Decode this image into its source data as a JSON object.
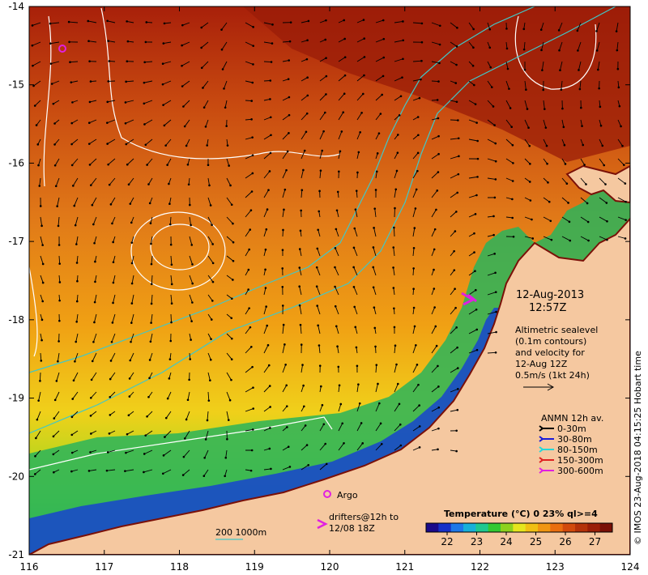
{
  "date_title": "12-Aug-2013",
  "time_title": "12:57Z",
  "altimetry": {
    "line1": "Altimetric sealevel",
    "line2": "(0.1m contours)",
    "line3": "and velocity for",
    "line4": "12-Aug 12Z",
    "line5": "0.5m/s (1kt 24h)"
  },
  "anmn": {
    "title": "ANMN 12h av.",
    "items": [
      {
        "label": "0-30m",
        "color": "#000000"
      },
      {
        "label": "30-80m",
        "color": "#1a1ad8"
      },
      {
        "label": "80-150m",
        "color": "#25d8d8"
      },
      {
        "label": "150-300m",
        "color": "#e02020"
      },
      {
        "label": "300-600m",
        "color": "#e020e0"
      }
    ]
  },
  "argo_label": "Argo",
  "drifters": {
    "line1": "drifters@12h to",
    "line2": "12/08 18Z"
  },
  "bathy_label": "200  1000m",
  "colorbar": {
    "title": "Temperature (°C) 0 23% ql>=4",
    "ticks": [
      "22",
      "23",
      "24",
      "25",
      "26",
      "27"
    ],
    "colors": [
      "#1a0a8a",
      "#1530c8",
      "#1e78e8",
      "#18b0d8",
      "#1ec890",
      "#32c832",
      "#8ed21e",
      "#e6e61e",
      "#f0c014",
      "#f09612",
      "#ea6e10",
      "#d24a0c",
      "#b4320a",
      "#9a1e08",
      "#7a1006"
    ]
  },
  "axes": {
    "x_ticks": [
      "116",
      "117",
      "118",
      "119",
      "120",
      "121",
      "122",
      "123",
      "124"
    ],
    "y_ticks": [
      "-14",
      "-15",
      "-16",
      "-17",
      "-18",
      "-19",
      "-20",
      "-21"
    ],
    "lon_range": [
      116,
      124
    ],
    "lat_range": [
      -21,
      -14
    ]
  },
  "credit": "© IMOS 23-Aug-2018 04:15:25 Hobart time",
  "colors": {
    "land": "#f5c8a0",
    "contour": "#ffffff",
    "bathy_200": "#40c8c8",
    "argo": "#e020e0",
    "drifter": "#e020e0",
    "arrow": "#000000"
  }
}
